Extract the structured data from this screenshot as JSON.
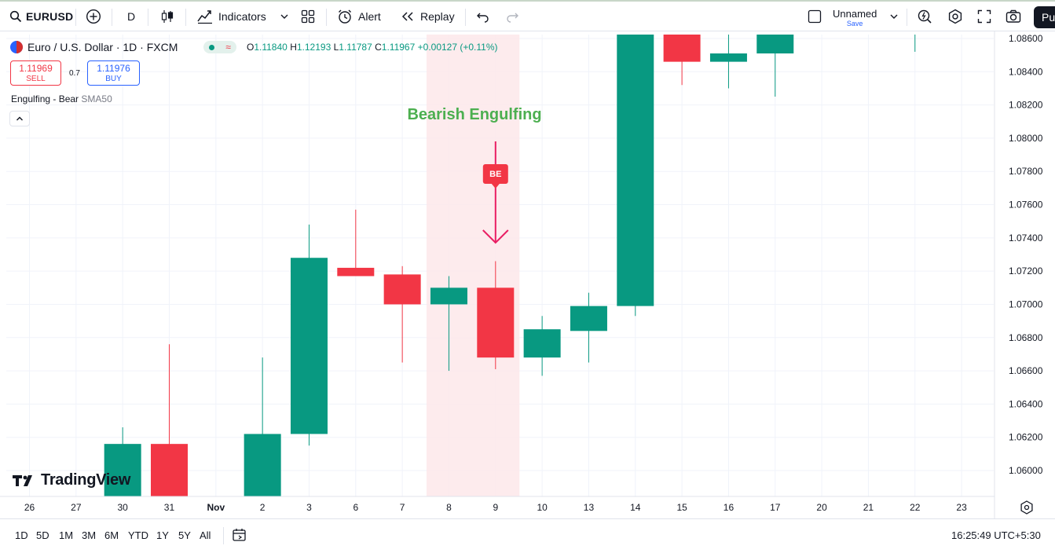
{
  "toolbar": {
    "symbol": "EURUSD",
    "interval": "D",
    "indicators_label": "Indicators",
    "alert_label": "Alert",
    "replay_label": "Replay",
    "layout_name": "Unnamed",
    "layout_save": "Save",
    "publish_label": "Pu"
  },
  "legend": {
    "title": "Euro / U.S. Dollar · 1D · FXCM",
    "open_label": "O",
    "open": "1.11840",
    "high_label": "H",
    "high": "1.12193",
    "low_label": "L",
    "low": "1.11787",
    "close_label": "C",
    "close": "1.11967",
    "change": "+0.00127 (+0.11%)",
    "sell_price": "1.11969",
    "sell_label": "SELL",
    "spread": "0.7",
    "buy_price": "1.11976",
    "buy_label": "BUY",
    "indicator_name": "Engulfing - Bear",
    "indicator_sub": "SMA50"
  },
  "annotation": {
    "text": "Bearish Engulfing",
    "badge": "BE"
  },
  "logo_text": "TradingView",
  "colors": {
    "up": "#089981",
    "down": "#f23645",
    "highlight": "#fde8ea",
    "annotation_text": "#4caf50"
  },
  "chart_data": {
    "type": "candlestick",
    "x_labels": [
      "26",
      "27",
      "30",
      "31",
      "Nov",
      "2",
      "3",
      "6",
      "7",
      "8",
      "9",
      "10",
      "13",
      "14",
      "15",
      "16",
      "17",
      "20",
      "21",
      "22",
      "23"
    ],
    "price_ticks": [
      "1.06000",
      "1.06200",
      "1.06400",
      "1.06600",
      "1.06800",
      "1.07000",
      "1.07200",
      "1.07400",
      "1.07600",
      "1.07800",
      "1.08000",
      "1.08200",
      "1.08400",
      "1.08600"
    ],
    "ylim": [
      1.0587,
      1.0872
    ],
    "candles": [
      {
        "x": "30",
        "open": 1.0587,
        "high": 1.0626,
        "low": 1.0587,
        "close": 1.0616
      },
      {
        "x": "31",
        "open": 1.0616,
        "high": 1.0676,
        "low": 1.0587,
        "close": 1.0587
      },
      {
        "x": "2",
        "open": 1.0587,
        "high": 1.0668,
        "low": 1.0587,
        "close": 1.0622
      },
      {
        "x": "3",
        "open": 1.0622,
        "high": 1.0748,
        "low": 1.0615,
        "close": 1.0728
      },
      {
        "x": "6",
        "open": 1.0722,
        "high": 1.0757,
        "low": 1.0717,
        "close": 1.0717
      },
      {
        "x": "7",
        "open": 1.0718,
        "high": 1.0723,
        "low": 1.0665,
        "close": 1.07
      },
      {
        "x": "8",
        "open": 1.07,
        "high": 1.0717,
        "low": 1.066,
        "close": 1.071
      },
      {
        "x": "9",
        "open": 1.071,
        "high": 1.0726,
        "low": 1.0661,
        "close": 1.0668
      },
      {
        "x": "10",
        "open": 1.0668,
        "high": 1.0693,
        "low": 1.0657,
        "close": 1.0685
      },
      {
        "x": "13",
        "open": 1.0684,
        "high": 1.0707,
        "low": 1.0665,
        "close": 1.0699
      },
      {
        "x": "14",
        "open": 1.0699,
        "high": 1.0872,
        "low": 1.0693,
        "close": 1.0872
      },
      {
        "x": "15",
        "open": 1.0869,
        "high": 1.0869,
        "low": 1.0832,
        "close": 1.0846
      },
      {
        "x": "16",
        "open": 1.0846,
        "high": 1.0863,
        "low": 1.083,
        "close": 1.0851
      },
      {
        "x": "17",
        "open": 1.0851,
        "high": 1.0869,
        "low": 1.0825,
        "close": 1.0869
      },
      {
        "x": "22",
        "open": 1.0869,
        "high": 1.0869,
        "low": 1.0852,
        "close": 1.0869
      }
    ],
    "highlight_range": [
      "8",
      "9"
    ],
    "signal": {
      "x": "9",
      "label": "BE",
      "direction": "down"
    }
  },
  "bottom": {
    "ranges": [
      "1D",
      "5D",
      "1M",
      "3M",
      "6M",
      "YTD",
      "1Y",
      "5Y",
      "All"
    ],
    "clock": "16:25:49 UTC+5:30"
  }
}
